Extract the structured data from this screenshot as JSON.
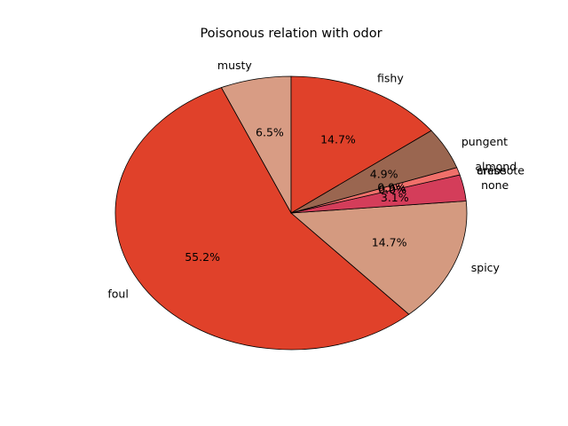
{
  "chart_data": {
    "type": "pie",
    "title": "Poisonous relation with odor",
    "start_angle_deg": 90,
    "direction": "counterclockwise",
    "slices": [
      {
        "label": "musty",
        "value": 6.5,
        "pct_label": "6.5%",
        "color": "#d89c84"
      },
      {
        "label": "foul",
        "value": 55.2,
        "pct_label": "55.2%",
        "color": "#e0412a"
      },
      {
        "label": "spicy",
        "value": 14.7,
        "pct_label": "14.7%",
        "color": "#d49a80"
      },
      {
        "label": "none",
        "value": 3.1,
        "pct_label": "3.1%",
        "color": "#d43d5a"
      },
      {
        "label": "creosote",
        "value": 0.0,
        "pct_label": "0.0%",
        "color": "#e0412a"
      },
      {
        "label": "anise",
        "value": 0.0,
        "pct_label": "0.0%",
        "color": "#d89c84"
      },
      {
        "label": "almond",
        "value": 0.9,
        "pct_label": "0.9%",
        "color": "#f0706a"
      },
      {
        "label": "pungent",
        "value": 4.9,
        "pct_label": "4.9%",
        "color": "#9a6650"
      },
      {
        "label": "fishy",
        "value": 14.7,
        "pct_label": "14.7%",
        "color": "#e0412a"
      }
    ]
  }
}
